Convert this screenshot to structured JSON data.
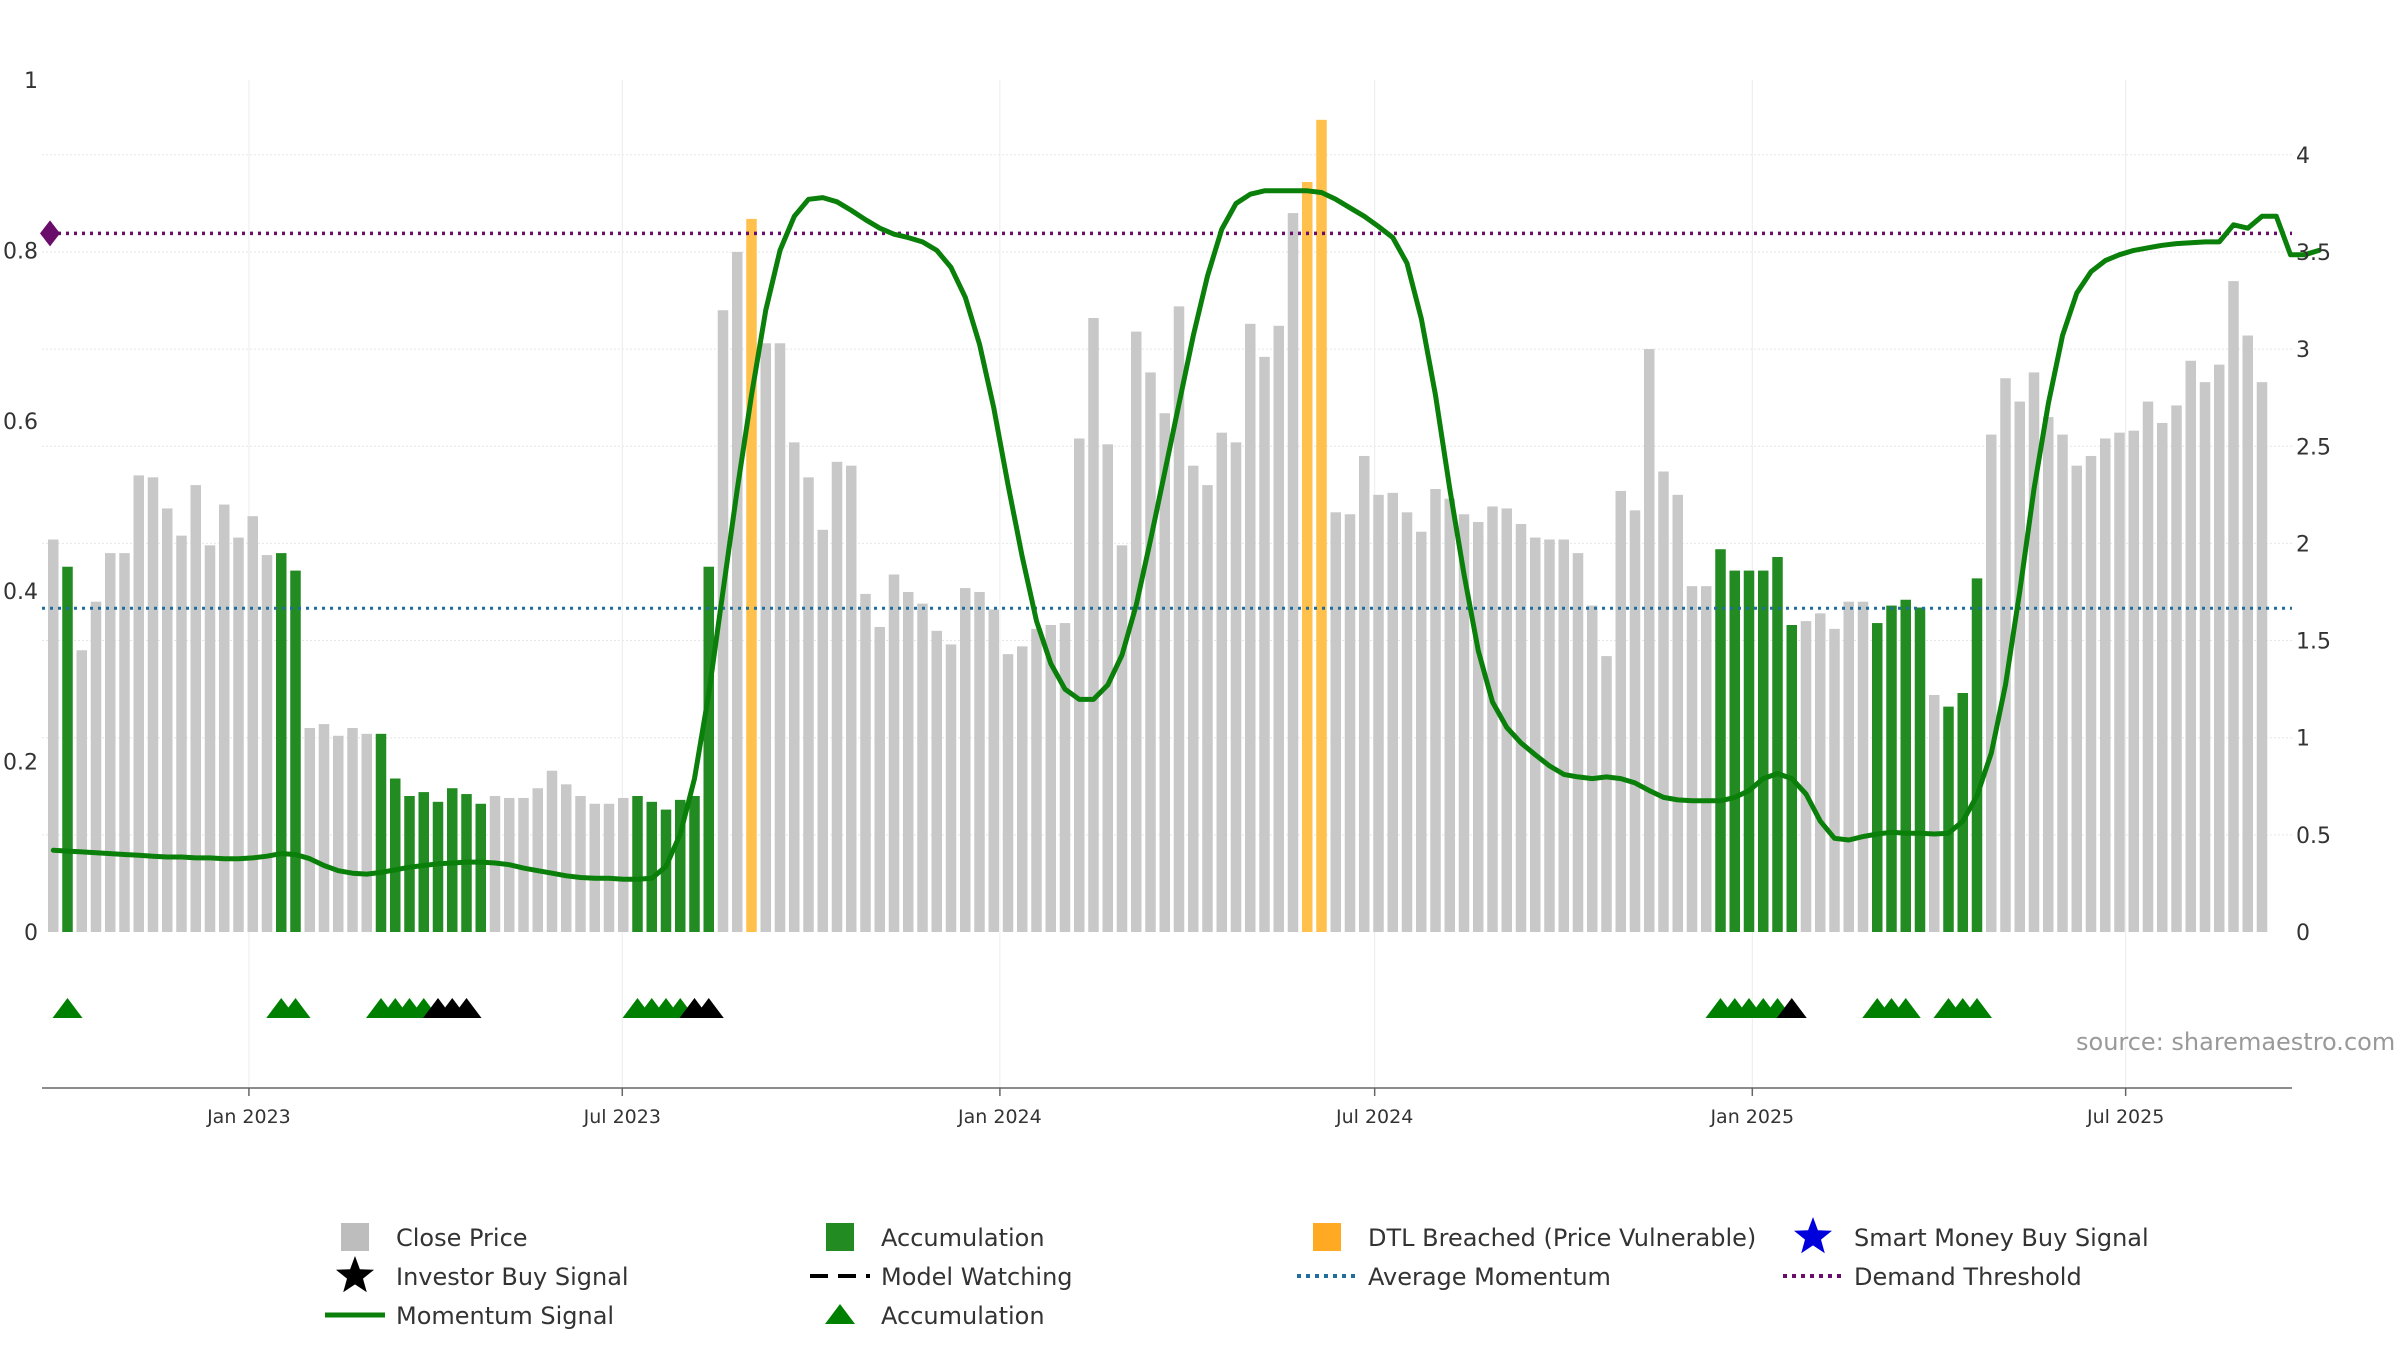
{
  "chart_data": {
    "type": "bar",
    "x_tick_labels": [
      "Jan 2023",
      "Jul 2023",
      "Jan 2024",
      "Jul 2024",
      "Jan 2025",
      "Jul 2025"
    ],
    "left_axis": {
      "ticks": [
        "0",
        "0.2",
        "0.4",
        "0.6",
        "0.8",
        "1"
      ],
      "range": [
        0,
        1
      ]
    },
    "right_axis": {
      "ticks": [
        "0",
        "0.5",
        "1",
        "1.5",
        "2",
        "2.5",
        "3",
        "3.5",
        "4"
      ],
      "range": [
        0,
        4.4
      ]
    },
    "grid": true,
    "series": [
      {
        "name": "Close Price",
        "color": "#c8c8c8",
        "values": [
          2.02,
          1.88,
          1.45,
          1.7,
          1.95,
          1.95,
          2.35,
          2.34,
          2.18,
          2.04,
          2.3,
          1.99,
          2.2,
          2.03,
          2.14,
          1.94,
          1.96,
          1.18,
          1.05,
          1.07,
          1.01,
          1.05,
          1.02,
          0.78,
          0.69,
          0.71,
          0.66,
          0.73,
          0.71,
          0.67,
          0.7,
          0.7,
          0.69,
          0.69,
          0.74,
          0.83,
          0.76,
          0.7,
          0.66,
          0.66,
          0.69,
          0.66,
          0.62,
          0.68,
          0.69,
          1.88,
          2.33,
          3.2,
          3.5,
          3.38,
          3.03,
          3.03,
          2.52,
          2.34,
          2.07,
          2.42,
          2.4,
          1.74,
          1.57,
          1.84,
          1.75,
          1.69,
          1.55,
          1.48,
          1.77,
          1.75,
          1.66,
          1.43,
          1.47,
          1.56,
          1.58,
          1.59,
          2.54,
          3.16,
          2.51,
          1.99,
          3.09,
          2.88,
          2.67,
          3.22,
          2.4,
          2.3,
          2.57,
          2.52,
          3.13,
          2.96,
          3.12,
          3.7,
          3.85,
          2.76,
          2.16,
          2.15,
          2.45,
          2.25,
          2.26,
          2.16,
          2.06,
          2.28,
          2.23,
          2.15,
          2.11,
          2.19,
          2.18,
          2.1,
          2.03,
          2.02,
          2.02,
          1.95,
          1.68,
          1.42,
          2.27,
          2.17,
          3.0,
          2.37,
          2.25,
          1.78,
          1.78,
          1.76,
          1.85,
          1.65,
          1.52,
          1.48,
          1.63,
          1.6,
          1.64,
          1.56,
          1.7,
          1.7,
          1.68,
          1.88,
          1.26,
          1.14,
          1.22,
          1.8,
          2.4,
          2.1,
          2.56,
          2.85,
          2.73,
          2.88,
          2.65,
          2.56,
          2.4,
          2.45,
          2.54,
          2.57,
          2.58,
          2.73,
          2.62,
          2.71,
          2.94,
          2.83,
          2.92,
          3.35,
          3.07,
          2.83
        ]
      },
      {
        "name": "Accumulation",
        "color": "#228b22",
        "indices": [
          1,
          16,
          17,
          23,
          24,
          25,
          26,
          27,
          28,
          29,
          30,
          41,
          42,
          43,
          44,
          45,
          46,
          117,
          118,
          119,
          120,
          121,
          122,
          128,
          129,
          130,
          131,
          133,
          134,
          135
        ],
        "values_by_index": {
          "1": 1.88,
          "16": 1.95,
          "17": 1.86,
          "23": 1.02,
          "24": 0.79,
          "25": 0.7,
          "26": 0.72,
          "27": 0.67,
          "28": 0.74,
          "29": 0.71,
          "30": 0.66,
          "41": 0.7,
          "42": 0.67,
          "43": 0.63,
          "44": 0.68,
          "45": 0.7,
          "46": 1.88,
          "117": 1.97,
          "118": 1.86,
          "119": 1.86,
          "120": 1.86,
          "121": 1.93,
          "122": 1.58,
          "128": 1.59,
          "129": 1.68,
          "130": 1.71,
          "131": 1.67,
          "133": 1.16,
          "134": 1.23,
          "135": 1.82
        }
      },
      {
        "name": "DTL Breached (Price Vulnerable)",
        "color": "#ffc04c",
        "values_by_index": {
          "49": 3.67,
          "88": 3.86,
          "89": 4.18
        }
      },
      {
        "name": "Momentum Signal",
        "color": "#0a7f0a",
        "values": [
          0.096,
          0.095,
          0.094,
          0.093,
          0.092,
          0.091,
          0.09,
          0.089,
          0.088,
          0.088,
          0.087,
          0.087,
          0.086,
          0.086,
          0.087,
          0.089,
          0.092,
          0.091,
          0.086,
          0.078,
          0.072,
          0.069,
          0.068,
          0.07,
          0.073,
          0.076,
          0.078,
          0.08,
          0.081,
          0.082,
          0.082,
          0.081,
          0.079,
          0.075,
          0.072,
          0.069,
          0.066,
          0.064,
          0.063,
          0.063,
          0.062,
          0.062,
          0.063,
          0.077,
          0.115,
          0.18,
          0.28,
          0.4,
          0.52,
          0.63,
          0.73,
          0.8,
          0.84,
          0.86,
          0.862,
          0.857,
          0.847,
          0.836,
          0.826,
          0.819,
          0.815,
          0.81,
          0.8,
          0.78,
          0.745,
          0.69,
          0.615,
          0.525,
          0.44,
          0.365,
          0.315,
          0.285,
          0.273,
          0.273,
          0.29,
          0.325,
          0.384,
          0.46,
          0.54,
          0.62,
          0.7,
          0.77,
          0.825,
          0.855,
          0.866,
          0.87,
          0.87,
          0.87,
          0.87,
          0.868,
          0.86,
          0.85,
          0.84,
          0.828,
          0.815,
          0.785,
          0.72,
          0.63,
          0.52,
          0.42,
          0.33,
          0.27,
          0.24,
          0.222,
          0.208,
          0.195,
          0.185,
          0.182,
          0.18,
          0.182,
          0.18,
          0.175,
          0.166,
          0.158,
          0.155,
          0.154,
          0.154,
          0.154,
          0.158,
          0.166,
          0.18,
          0.186,
          0.18,
          0.162,
          0.13,
          0.11,
          0.108,
          0.112,
          0.115,
          0.117,
          0.116,
          0.116,
          0.115,
          0.116,
          0.13,
          0.16,
          0.21,
          0.29,
          0.4,
          0.52,
          0.62,
          0.7,
          0.75,
          0.775,
          0.788,
          0.795,
          0.8,
          0.803,
          0.806,
          0.808,
          0.809,
          0.81,
          0.81,
          0.83,
          0.826,
          0.84,
          0.84,
          0.795,
          0.795,
          0.8
        ]
      },
      {
        "name": "Average Momentum",
        "color": "#1f6e9c",
        "value": 0.38
      },
      {
        "name": "Demand Threshold",
        "color": "#6a0d6a",
        "value": 0.82
      },
      {
        "name": "Accumulation",
        "color": "#008000",
        "marker_indices": [
          1,
          16,
          17,
          23,
          24,
          25,
          26,
          41,
          42,
          43,
          44,
          117,
          118,
          119,
          120,
          121,
          128,
          129,
          130,
          133,
          134,
          135
        ]
      },
      {
        "name": "Investor Buy Signal",
        "color": "#000000",
        "marker_indices": [
          27,
          28,
          29,
          45,
          46,
          122
        ]
      },
      {
        "name": "Smart Money Buy Signal",
        "color": "#0000cc",
        "marker_indices": []
      },
      {
        "name": "Model Watching",
        "color": "#000000",
        "marker_indices": []
      }
    ],
    "legend": [
      {
        "label": "Close Price",
        "symbol": "square",
        "color": "#bdbdbd"
      },
      {
        "label": "Accumulation",
        "symbol": "square",
        "color": "#228b22"
      },
      {
        "label": "DTL Breached (Price Vulnerable)",
        "symbol": "square",
        "color": "#ffaa22"
      },
      {
        "label": "Smart Money Buy Signal",
        "symbol": "star",
        "color": "#0000dd"
      },
      {
        "label": "Investor Buy Signal",
        "symbol": "star",
        "color": "#000000"
      },
      {
        "label": "Model Watching",
        "symbol": "dash",
        "color": "#000000"
      },
      {
        "label": "Average Momentum",
        "symbol": "dots",
        "color": "#1f6e9c"
      },
      {
        "label": "Demand Threshold",
        "symbol": "dots",
        "color": "#6a0d6a"
      },
      {
        "label": "Momentum Signal",
        "symbol": "line",
        "color": "#0a7f0a"
      },
      {
        "label": "Accumulation",
        "symbol": "triangle",
        "color": "#008000"
      }
    ],
    "legend_position": "bottom",
    "source": "source: sharemaestro.com"
  }
}
